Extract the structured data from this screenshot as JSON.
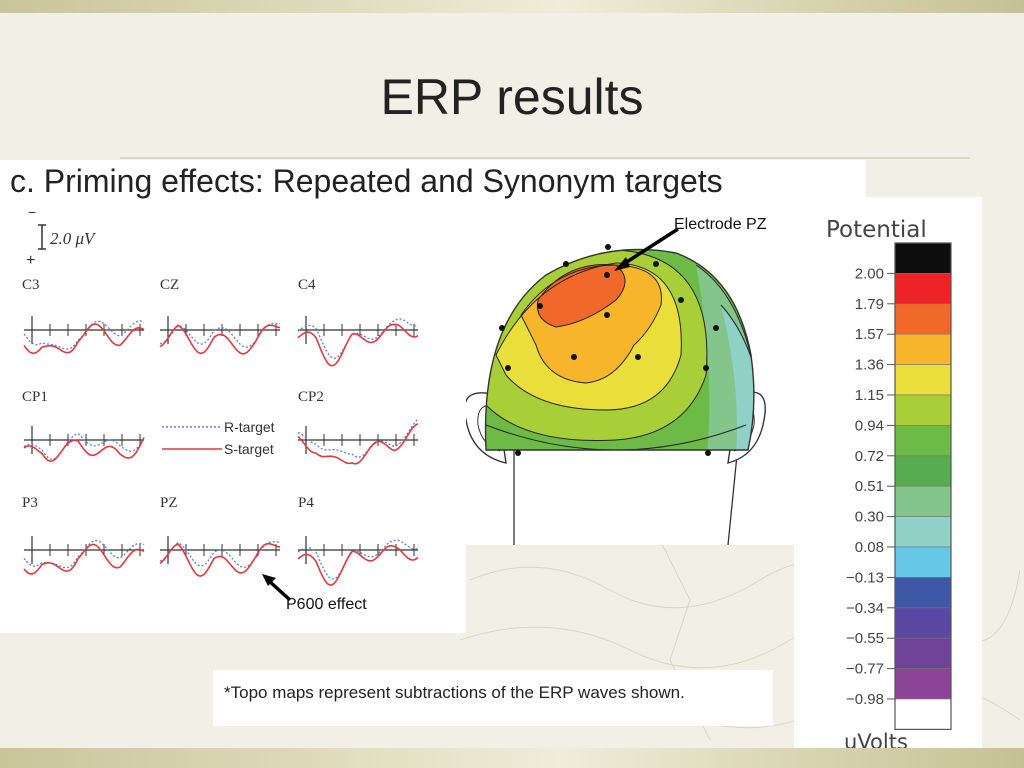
{
  "slide": {
    "title": "ERP results"
  },
  "figure": {
    "heading": "c.  Priming effects: Repeated and Synonym targets",
    "scale_bar": {
      "minus": "−",
      "plus": "+",
      "label": "2.0  μV"
    },
    "electrodes": [
      {
        "label": "C3"
      },
      {
        "label": "CZ"
      },
      {
        "label": "C4"
      },
      {
        "label": "CP1"
      },
      {
        "label": "CP2"
      },
      {
        "label": "P3"
      },
      {
        "label": "PZ"
      },
      {
        "label": "P4"
      }
    ],
    "legend": {
      "r_target": "R-target",
      "s_target": "S-target",
      "r_color": "#5b7fd6",
      "s_color": "#e0393e"
    },
    "annotation_p600": "P600 effect",
    "topomap_callout": "Electrode PZ",
    "note": "*Topo maps represent subtractions of the ERP waves shown."
  },
  "color_scale": {
    "title": "Potential",
    "unit": "uVolts",
    "ticks": [
      "2.00",
      "1.79",
      "1.57",
      "1.36",
      "1.15",
      "0.94",
      "0.72",
      "0.51",
      "0.30",
      "0.08",
      "−0.13",
      "−0.34",
      "−0.55",
      "−0.77",
      "−0.98"
    ],
    "colors": [
      "#0d0d0d",
      "#ee2326",
      "#f0692a",
      "#f7b52c",
      "#eadf3a",
      "#a9cf38",
      "#6dbb46",
      "#56ac4e",
      "#83c58b",
      "#8fd0c7",
      "#67c7e6",
      "#3f57a7",
      "#5b48a0",
      "#6e4399",
      "#8c4596",
      "#ffffff"
    ]
  }
}
